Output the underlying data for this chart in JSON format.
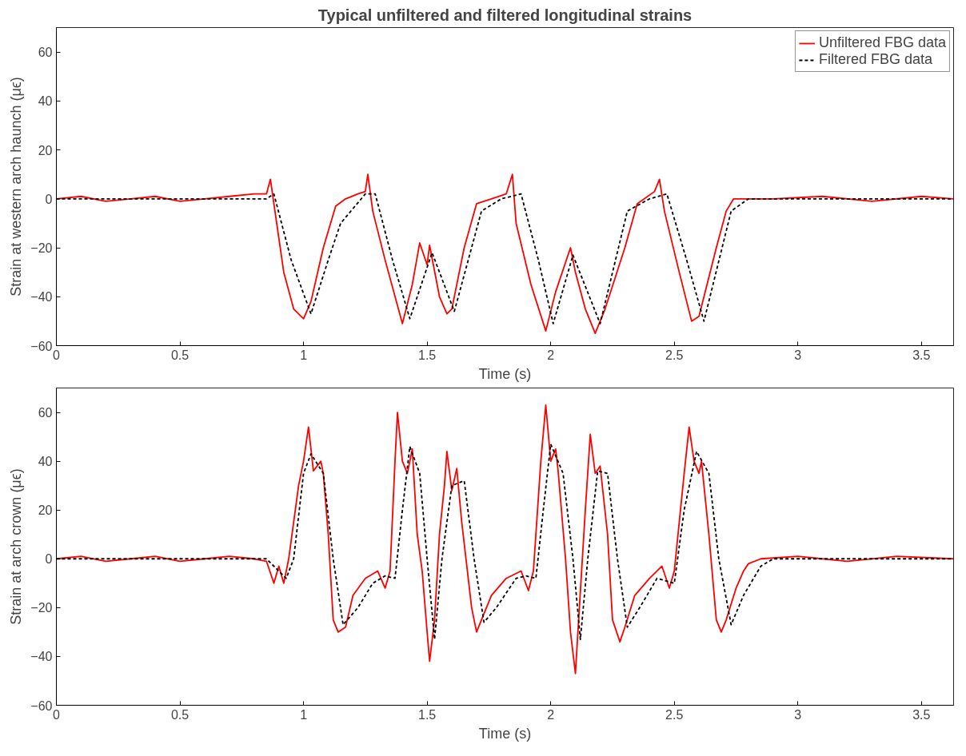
{
  "chart_data": [
    {
      "type": "line",
      "title": "Typical unfiltered and filtered longitudinal strains",
      "xlabel": "Time (s)",
      "ylabel": "Strain at western arch haunch (μϵ)",
      "xlim": [
        0,
        3.63
      ],
      "xticks": [
        0,
        0.5,
        1,
        1.5,
        2,
        2.5,
        3,
        3.5
      ],
      "ylim": [
        -60,
        70
      ],
      "yticks": [
        -60,
        -40,
        -20,
        0,
        20,
        40,
        60
      ],
      "grid": false,
      "legend": "top right",
      "marker": "none",
      "series": [
        {
          "name": "Unfiltered FBG data",
          "color": "#ff0000",
          "line_style": "solid",
          "x": [
            0,
            0.1,
            0.2,
            0.3,
            0.4,
            0.5,
            0.6,
            0.7,
            0.8,
            0.85,
            0.866,
            0.88,
            0.92,
            0.96,
            1.0,
            1.03,
            1.08,
            1.13,
            1.17,
            1.22,
            1.25,
            1.26,
            1.28,
            1.33,
            1.4,
            1.44,
            1.47,
            1.5,
            1.51,
            1.55,
            1.58,
            1.6,
            1.65,
            1.7,
            1.76,
            1.82,
            1.845,
            1.86,
            1.92,
            1.98,
            2.02,
            2.08,
            2.1,
            2.14,
            2.18,
            2.22,
            2.3,
            2.35,
            2.42,
            2.44,
            2.46,
            2.52,
            2.57,
            2.6,
            2.67,
            2.71,
            2.74,
            2.9,
            3.1,
            3.3,
            3.5,
            3.63
          ],
          "values": [
            0,
            1,
            -1,
            0,
            1,
            -1,
            0,
            1,
            2,
            2,
            8,
            -2,
            -30,
            -45,
            -49,
            -42,
            -20,
            -3,
            0,
            2,
            3,
            10,
            -5,
            -25,
            -51,
            -35,
            -18,
            -27,
            -19,
            -40,
            -47,
            -45,
            -20,
            -2,
            0,
            2,
            10,
            -10,
            -35,
            -54,
            -38,
            -20,
            -30,
            -45,
            -55,
            -45,
            -20,
            -2,
            3,
            8,
            -5,
            -30,
            -50,
            -48,
            -20,
            -5,
            0,
            0,
            1,
            -1,
            1,
            0
          ]
        },
        {
          "name": "Filtered FBG data",
          "color": "#000000",
          "line_style": "dashed",
          "x": [
            0,
            0.85,
            0.88,
            0.95,
            1.03,
            1.1,
            1.15,
            1.25,
            1.29,
            1.36,
            1.43,
            1.52,
            1.61,
            1.72,
            1.8,
            1.88,
            1.95,
            2.01,
            2.09,
            2.2,
            2.31,
            2.4,
            2.47,
            2.55,
            2.62,
            2.73,
            2.8,
            3.63
          ],
          "values": [
            0,
            0,
            2,
            -25,
            -47,
            -25,
            -10,
            2,
            2,
            -25,
            -49,
            -22,
            -46,
            -5,
            0,
            2,
            -25,
            -51,
            -23,
            -51,
            -5,
            0,
            2,
            -25,
            -50,
            -5,
            0,
            0
          ]
        }
      ]
    },
    {
      "type": "line",
      "xlabel": "Time (s)",
      "ylabel": "Strain at arch crown (μϵ)",
      "xlim": [
        0,
        3.63
      ],
      "xticks": [
        0,
        0.5,
        1,
        1.5,
        2,
        2.5,
        3,
        3.5
      ],
      "ylim": [
        -60,
        70
      ],
      "yticks": [
        -60,
        -40,
        -20,
        0,
        20,
        40,
        60
      ],
      "grid": false,
      "legend": false,
      "marker": "none",
      "series": [
        {
          "color": "#ff0000",
          "line_style": "solid",
          "x": [
            0,
            0.1,
            0.2,
            0.3,
            0.4,
            0.5,
            0.6,
            0.7,
            0.8,
            0.85,
            0.88,
            0.9,
            0.92,
            0.94,
            0.98,
            1.0,
            1.02,
            1.04,
            1.07,
            1.08,
            1.1,
            1.12,
            1.14,
            1.17,
            1.2,
            1.25,
            1.3,
            1.33,
            1.35,
            1.37,
            1.38,
            1.4,
            1.42,
            1.44,
            1.46,
            1.48,
            1.5,
            1.51,
            1.53,
            1.55,
            1.57,
            1.58,
            1.6,
            1.62,
            1.64,
            1.68,
            1.7,
            1.72,
            1.76,
            1.82,
            1.88,
            1.91,
            1.93,
            1.96,
            1.98,
            2.0,
            2.02,
            2.03,
            2.06,
            2.08,
            2.1,
            2.11,
            2.14,
            2.16,
            2.18,
            2.2,
            2.23,
            2.25,
            2.28,
            2.3,
            2.34,
            2.4,
            2.45,
            2.48,
            2.5,
            2.54,
            2.56,
            2.58,
            2.6,
            2.61,
            2.64,
            2.67,
            2.69,
            2.71,
            2.75,
            2.78,
            2.8,
            2.85,
            3.0,
            3.2,
            3.4,
            3.63
          ],
          "values": [
            0,
            1,
            -1,
            0,
            1,
            -1,
            0,
            1,
            0,
            -1,
            -10,
            -3,
            -10,
            0,
            30,
            40,
            54,
            36,
            40,
            35,
            10,
            -25,
            -30,
            -28,
            -15,
            -8,
            -5,
            -12,
            -5,
            40,
            60,
            40,
            35,
            45,
            10,
            -5,
            -30,
            -42,
            -25,
            10,
            30,
            44,
            28,
            37,
            15,
            -20,
            -30,
            -25,
            -15,
            -8,
            -5,
            -13,
            -5,
            40,
            63,
            40,
            45,
            36,
            0,
            -30,
            -47,
            -30,
            20,
            51,
            35,
            38,
            10,
            -25,
            -34,
            -28,
            -15,
            -8,
            -3,
            -12,
            -5,
            35,
            54,
            40,
            35,
            40,
            10,
            -25,
            -30,
            -25,
            -12,
            -5,
            -2,
            0,
            1,
            -1,
            1,
            0
          ]
        },
        {
          "color": "#000000",
          "line_style": "dashed",
          "x": [
            0,
            0.85,
            0.93,
            0.96,
            1.0,
            1.03,
            1.08,
            1.12,
            1.16,
            1.22,
            1.28,
            1.33,
            1.37,
            1.4,
            1.43,
            1.47,
            1.5,
            1.53,
            1.56,
            1.6,
            1.65,
            1.69,
            1.73,
            1.78,
            1.86,
            1.9,
            1.94,
            1.97,
            2.0,
            2.05,
            2.09,
            2.12,
            2.15,
            2.19,
            2.23,
            2.27,
            2.31,
            2.36,
            2.43,
            2.5,
            2.54,
            2.59,
            2.64,
            2.68,
            2.73,
            2.78,
            2.85,
            2.9,
            3.63
          ],
          "values": [
            0,
            0,
            -8,
            0,
            35,
            43,
            35,
            0,
            -27,
            -20,
            -10,
            -7,
            -8,
            20,
            46,
            35,
            0,
            -33,
            0,
            30,
            32,
            0,
            -26,
            -20,
            -8,
            -7,
            -8,
            20,
            47,
            35,
            0,
            -33,
            0,
            36,
            35,
            0,
            -28,
            -20,
            -8,
            -10,
            20,
            44,
            35,
            0,
            -27,
            -15,
            -3,
            0,
            0
          ]
        }
      ]
    }
  ]
}
